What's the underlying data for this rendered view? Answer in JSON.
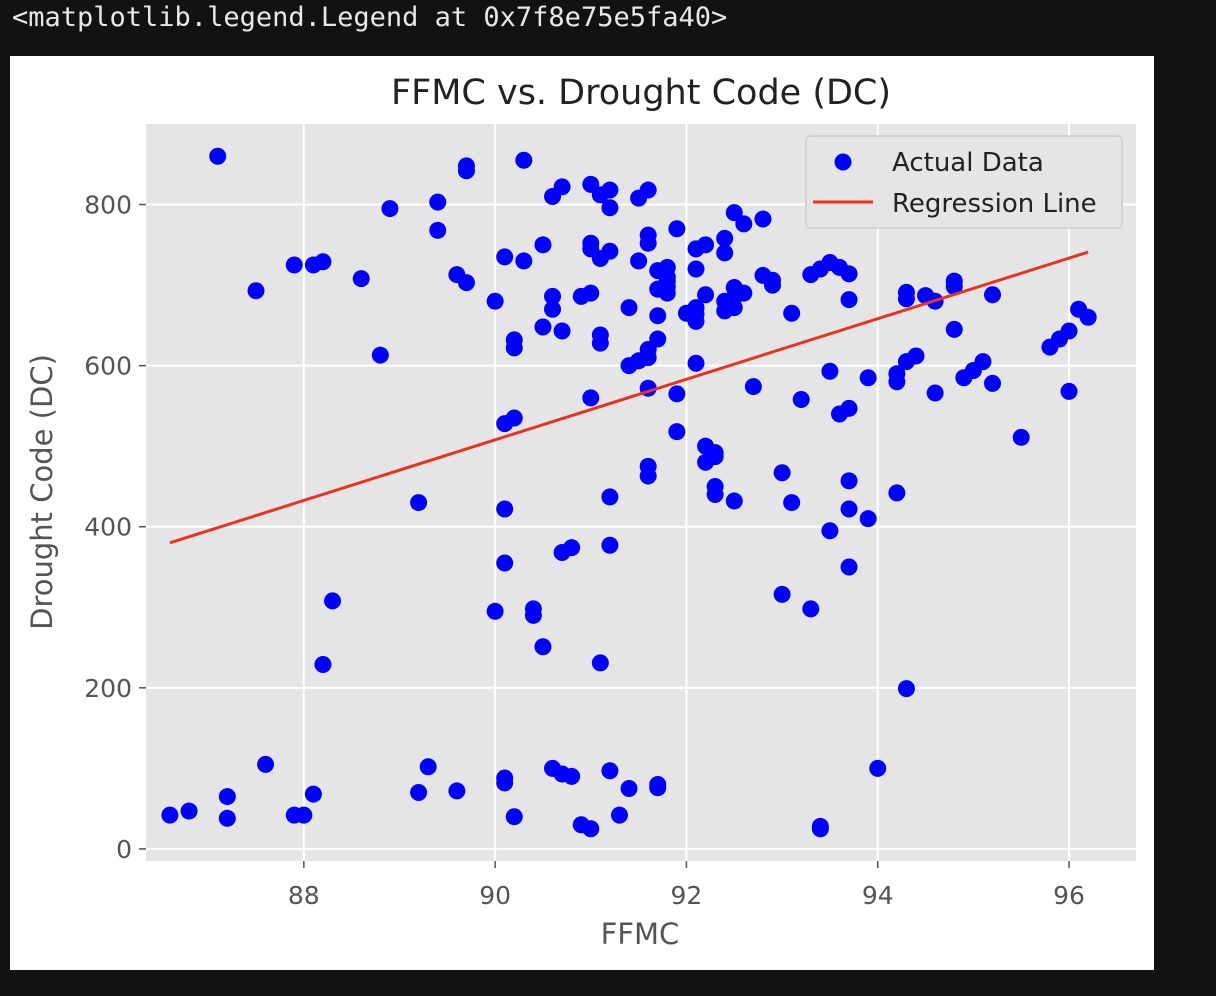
{
  "output_text": "<matplotlib.legend.Legend at 0x7f8e75e5fa40>",
  "chart_data": {
    "type": "scatter",
    "title": "FFMC vs. Drought Code (DC)",
    "xlabel": "FFMC",
    "ylabel": "Drought Code (DC)",
    "xlim": [
      86.35,
      96.7
    ],
    "ylim": [
      -15,
      900
    ],
    "xticks": [
      88,
      90,
      92,
      94,
      96
    ],
    "yticks": [
      0,
      200,
      400,
      600,
      800
    ],
    "grid": true,
    "legend_position": "top-right",
    "colors": {
      "points": "#0000ff",
      "line": "#e8331f",
      "axes_bg": "#e5e5e5",
      "grid": "#ffffff"
    },
    "series": [
      {
        "name": "Actual Data",
        "kind": "scatter",
        "points": [
          [
            87.1,
            860
          ],
          [
            87.5,
            693
          ],
          [
            88.9,
            795
          ],
          [
            89.4,
            803
          ],
          [
            89.4,
            768
          ],
          [
            89.7,
            848
          ],
          [
            89.7,
            842
          ],
          [
            90.3,
            855
          ],
          [
            87.9,
            725
          ],
          [
            88.1,
            725
          ],
          [
            88.2,
            729
          ],
          [
            88.6,
            708
          ],
          [
            88.8,
            613
          ],
          [
            89.6,
            713
          ],
          [
            89.7,
            703
          ],
          [
            90.0,
            680
          ],
          [
            90.1,
            735
          ],
          [
            90.3,
            730
          ],
          [
            90.5,
            750
          ],
          [
            90.6,
            810
          ],
          [
            90.7,
            822
          ],
          [
            91.0,
            825
          ],
          [
            91.1,
            812
          ],
          [
            91.2,
            818
          ],
          [
            91.2,
            796
          ],
          [
            91.5,
            808
          ],
          [
            91.6,
            818
          ],
          [
            91.6,
            762
          ],
          [
            91.6,
            752
          ],
          [
            91.9,
            770
          ],
          [
            91.0,
            752
          ],
          [
            91.0,
            745
          ],
          [
            91.1,
            733
          ],
          [
            91.2,
            742
          ],
          [
            91.5,
            730
          ],
          [
            91.8,
            722
          ],
          [
            91.7,
            718
          ],
          [
            91.8,
            710
          ],
          [
            91.8,
            705
          ],
          [
            91.8,
            698
          ],
          [
            91.7,
            695
          ],
          [
            91.8,
            690
          ],
          [
            91.0,
            690
          ],
          [
            90.9,
            686
          ],
          [
            90.6,
            686
          ],
          [
            90.6,
            670
          ],
          [
            90.5,
            648
          ],
          [
            90.7,
            643
          ],
          [
            91.1,
            638
          ],
          [
            91.1,
            628
          ],
          [
            91.4,
            672
          ],
          [
            91.7,
            662
          ],
          [
            91.7,
            633
          ],
          [
            91.6,
            620
          ],
          [
            91.6,
            610
          ],
          [
            91.5,
            606
          ],
          [
            91.4,
            600
          ],
          [
            91.6,
            572
          ],
          [
            91.9,
            565
          ],
          [
            92.0,
            665
          ],
          [
            92.1,
            672
          ],
          [
            92.1,
            664
          ],
          [
            92.1,
            655
          ],
          [
            92.1,
            720
          ],
          [
            92.1,
            745
          ],
          [
            92.2,
            750
          ],
          [
            92.4,
            758
          ],
          [
            92.4,
            740
          ],
          [
            92.5,
            790
          ],
          [
            92.6,
            776
          ],
          [
            92.8,
            782
          ],
          [
            92.2,
            688
          ],
          [
            92.4,
            668
          ],
          [
            92.4,
            680
          ],
          [
            92.5,
            685
          ],
          [
            92.5,
            697
          ],
          [
            92.6,
            690
          ],
          [
            92.5,
            672
          ],
          [
            92.8,
            712
          ],
          [
            92.9,
            700
          ],
          [
            92.9,
            706
          ],
          [
            93.1,
            665
          ],
          [
            92.1,
            603
          ],
          [
            92.7,
            574
          ],
          [
            93.2,
            558
          ],
          [
            93.5,
            593
          ],
          [
            93.6,
            540
          ],
          [
            93.7,
            547
          ],
          [
            93.3,
            713
          ],
          [
            93.4,
            720
          ],
          [
            93.5,
            728
          ],
          [
            93.6,
            722
          ],
          [
            93.7,
            714
          ],
          [
            93.7,
            682
          ],
          [
            94.3,
            691
          ],
          [
            94.3,
            683
          ],
          [
            94.5,
            687
          ],
          [
            94.6,
            680
          ],
          [
            94.8,
            705
          ],
          [
            94.8,
            698
          ],
          [
            94.8,
            645
          ],
          [
            95.2,
            688
          ],
          [
            94.2,
            590
          ],
          [
            94.2,
            580
          ],
          [
            94.3,
            605
          ],
          [
            94.4,
            612
          ],
          [
            94.6,
            566
          ],
          [
            94.9,
            585
          ],
          [
            95.0,
            594
          ],
          [
            95.1,
            605
          ],
          [
            95.2,
            578
          ],
          [
            95.5,
            511
          ],
          [
            95.8,
            623
          ],
          [
            95.9,
            633
          ],
          [
            96.0,
            643
          ],
          [
            96.1,
            670
          ],
          [
            96.2,
            660
          ],
          [
            96.0,
            568
          ],
          [
            93.9,
            585
          ],
          [
            91.0,
            560
          ],
          [
            90.1,
            528
          ],
          [
            90.2,
            535
          ],
          [
            90.2,
            632
          ],
          [
            90.2,
            622
          ],
          [
            91.9,
            518
          ],
          [
            92.2,
            500
          ],
          [
            92.3,
            492
          ],
          [
            92.2,
            480
          ],
          [
            92.3,
            487
          ],
          [
            91.6,
            475
          ],
          [
            91.6,
            463
          ],
          [
            91.2,
            437
          ],
          [
            92.3,
            450
          ],
          [
            92.3,
            440
          ],
          [
            92.5,
            432
          ],
          [
            93.0,
            467
          ],
          [
            93.1,
            430
          ],
          [
            93.7,
            457
          ],
          [
            93.7,
            422
          ],
          [
            93.9,
            410
          ],
          [
            94.2,
            442
          ],
          [
            93.5,
            395
          ],
          [
            93.7,
            350
          ],
          [
            89.2,
            430
          ],
          [
            90.1,
            422
          ],
          [
            90.1,
            355
          ],
          [
            90.7,
            368
          ],
          [
            90.8,
            374
          ],
          [
            91.2,
            377
          ],
          [
            88.3,
            308
          ],
          [
            88.2,
            229
          ],
          [
            90.0,
            295
          ],
          [
            90.4,
            298
          ],
          [
            90.4,
            290
          ],
          [
            90.5,
            251
          ],
          [
            91.1,
            231
          ],
          [
            93.0,
            316
          ],
          [
            93.3,
            298
          ],
          [
            94.3,
            199
          ],
          [
            94.0,
            100
          ],
          [
            86.6,
            42
          ],
          [
            86.8,
            47
          ],
          [
            87.2,
            65
          ],
          [
            87.2,
            38
          ],
          [
            87.6,
            105
          ],
          [
            87.9,
            42
          ],
          [
            88.0,
            42
          ],
          [
            88.1,
            68
          ],
          [
            89.2,
            70
          ],
          [
            89.3,
            102
          ],
          [
            89.6,
            72
          ],
          [
            90.1,
            88
          ],
          [
            90.1,
            82
          ],
          [
            90.2,
            40
          ],
          [
            90.6,
            100
          ],
          [
            90.7,
            93
          ],
          [
            90.8,
            90
          ],
          [
            90.9,
            30
          ],
          [
            91.0,
            25
          ],
          [
            91.2,
            97
          ],
          [
            91.3,
            42
          ],
          [
            91.4,
            75
          ],
          [
            91.7,
            80
          ],
          [
            91.7,
            76
          ],
          [
            93.4,
            28
          ],
          [
            93.4,
            25
          ]
        ]
      },
      {
        "name": "Regression Line",
        "kind": "line",
        "points": [
          [
            86.6,
            380
          ],
          [
            96.2,
            741
          ]
        ]
      }
    ]
  }
}
